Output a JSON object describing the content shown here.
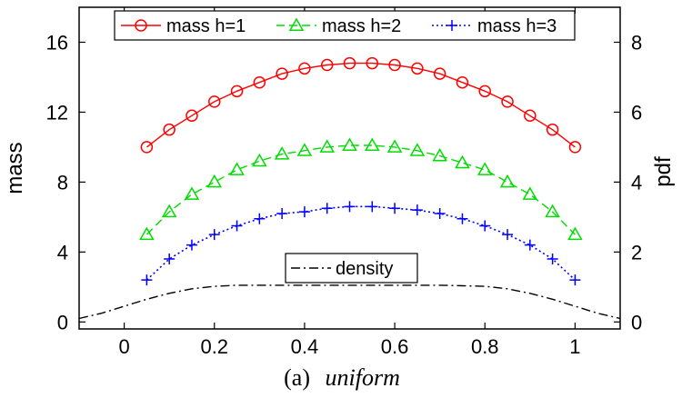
{
  "chart_data": {
    "type": "line",
    "caption_prefix": "(a)",
    "caption_italic": "uniform",
    "ylabel": "mass",
    "y2label": "pdf",
    "xlim": [
      -0.1,
      1.1
    ],
    "ylim": [
      -0.4,
      18.0
    ],
    "y2lim": [
      -0.2,
      9.0
    ],
    "xticks": [
      0,
      0.2,
      0.4,
      0.6,
      0.8,
      1
    ],
    "xtick_labels": [
      "0",
      "0.2",
      "0.4",
      "0.6",
      "0.8",
      "1"
    ],
    "yticks": [
      0,
      4,
      8,
      12,
      16
    ],
    "ytick_labels": [
      "0",
      "4",
      "8",
      "12",
      "16"
    ],
    "y2ticks": [
      0,
      2,
      4,
      6,
      8
    ],
    "y2tick_labels": [
      "0",
      "2",
      "4",
      "6",
      "8"
    ],
    "grid": false,
    "legend_placement": "top-center",
    "series": [
      {
        "name": "mass h=1",
        "axis": "left",
        "color": "#ff0000",
        "line_style": "solid",
        "marker": "circle",
        "x": [
          0.05,
          0.1,
          0.15,
          0.2,
          0.25,
          0.3,
          0.35,
          0.4,
          0.45,
          0.5,
          0.55,
          0.6,
          0.65,
          0.7,
          0.75,
          0.8,
          0.85,
          0.9,
          0.95,
          1.0
        ],
        "values": [
          10.0,
          11.0,
          11.8,
          12.6,
          13.2,
          13.7,
          14.2,
          14.5,
          14.7,
          14.8,
          14.8,
          14.7,
          14.5,
          14.2,
          13.7,
          13.2,
          12.6,
          11.8,
          11.0,
          10.0
        ]
      },
      {
        "name": "mass h=2",
        "axis": "left",
        "color": "#00dd00",
        "line_style": "dashed",
        "marker": "triangle",
        "x": [
          0.05,
          0.1,
          0.15,
          0.2,
          0.25,
          0.3,
          0.35,
          0.4,
          0.45,
          0.5,
          0.55,
          0.6,
          0.65,
          0.7,
          0.75,
          0.8,
          0.85,
          0.9,
          0.95,
          1.0
        ],
        "values": [
          5.0,
          6.3,
          7.3,
          8.0,
          8.7,
          9.2,
          9.6,
          9.8,
          10.0,
          10.1,
          10.1,
          10.0,
          9.8,
          9.5,
          9.1,
          8.7,
          8.0,
          7.3,
          6.3,
          5.0
        ]
      },
      {
        "name": "mass h=3",
        "axis": "left",
        "color": "#0000ff",
        "line_style": "dotted",
        "marker": "plus",
        "x": [
          0.05,
          0.1,
          0.15,
          0.2,
          0.25,
          0.3,
          0.35,
          0.4,
          0.45,
          0.5,
          0.55,
          0.6,
          0.65,
          0.7,
          0.75,
          0.8,
          0.85,
          0.9,
          0.95,
          1.0
        ],
        "values": [
          2.4,
          3.6,
          4.4,
          5.0,
          5.5,
          5.9,
          6.2,
          6.3,
          6.5,
          6.6,
          6.6,
          6.5,
          6.4,
          6.2,
          5.9,
          5.5,
          5.0,
          4.4,
          3.6,
          2.4
        ]
      },
      {
        "name": "density",
        "axis": "right",
        "color": "#000000",
        "line_style": "dashdot",
        "marker": "none",
        "x": [
          -0.1,
          -0.05,
          0.0,
          0.05,
          0.1,
          0.15,
          0.2,
          0.25,
          0.3,
          0.4,
          0.5,
          0.6,
          0.7,
          0.8,
          0.85,
          0.9,
          0.95,
          1.0,
          1.05,
          1.1
        ],
        "values": [
          0.1,
          0.25,
          0.45,
          0.65,
          0.82,
          0.95,
          1.02,
          1.05,
          1.05,
          1.05,
          1.05,
          1.05,
          1.05,
          1.02,
          0.95,
          0.82,
          0.65,
          0.45,
          0.25,
          0.1
        ]
      }
    ]
  }
}
